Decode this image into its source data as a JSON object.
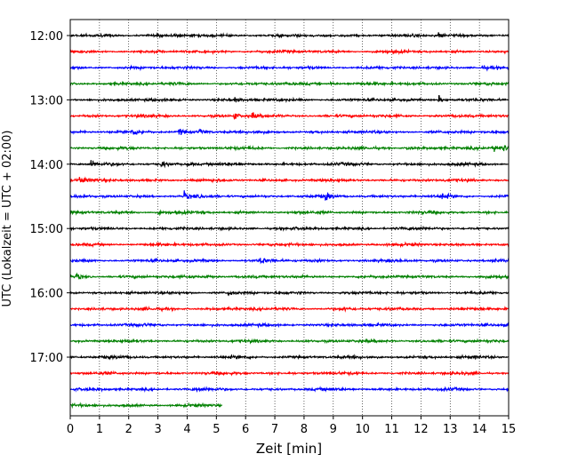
{
  "chart_data": {
    "type": "line",
    "title": "",
    "xlabel": "Zeit  [min]",
    "ylabel": "UTC (Lokalzeit = UTC + 02:00)",
    "xlim": [
      0,
      15
    ],
    "x_ticks": [
      0,
      1,
      2,
      3,
      4,
      5,
      6,
      7,
      8,
      9,
      10,
      11,
      12,
      13,
      14,
      15
    ],
    "x_tick_labels": [
      "0",
      "1",
      "2",
      "3",
      "4",
      "5",
      "6",
      "7",
      "8",
      "9",
      "10",
      "11",
      "12",
      "13",
      "14",
      "15"
    ],
    "y_tick_labels": [
      "12:00",
      "13:00",
      "14:00",
      "15:00",
      "16:00",
      "17:00"
    ],
    "grid_x": "dotted vertical lines at each minute",
    "trace_interval_min": 15,
    "colors": [
      "#000000",
      "#ff0000",
      "#0000ff",
      "#008000"
    ],
    "traces": [
      {
        "start": "12:00",
        "end_min": 15,
        "color": "#000000",
        "events": [
          [
            12.6,
            3
          ]
        ]
      },
      {
        "start": "12:15",
        "end_min": 15,
        "color": "#ff0000",
        "events": []
      },
      {
        "start": "12:30",
        "end_min": 15,
        "color": "#0000ff",
        "events": [
          [
            14.1,
            1.6
          ]
        ]
      },
      {
        "start": "12:45",
        "end_min": 15,
        "color": "#008000",
        "events": [
          [
            8.9,
            1.6
          ]
        ]
      },
      {
        "start": "13:00",
        "end_min": 15,
        "color": "#000000",
        "events": [
          [
            5.6,
            2
          ],
          [
            12.6,
            4
          ]
        ]
      },
      {
        "start": "13:15",
        "end_min": 15,
        "color": "#ff0000",
        "events": [
          [
            5.6,
            3.5
          ],
          [
            6.2,
            3
          ]
        ]
      },
      {
        "start": "13:30",
        "end_min": 15,
        "color": "#0000ff",
        "events": [
          [
            2.1,
            3.5
          ],
          [
            3.7,
            4
          ],
          [
            4.4,
            3
          ]
        ]
      },
      {
        "start": "13:45",
        "end_min": 15,
        "color": "#008000",
        "events": [
          [
            11.5,
            2
          ],
          [
            14.5,
            3.5
          ],
          [
            14.8,
            3
          ]
        ]
      },
      {
        "start": "14:00",
        "end_min": 15,
        "color": "#000000",
        "events": [
          [
            0.7,
            4
          ],
          [
            3.1,
            3.5
          ],
          [
            4.0,
            2.5
          ]
        ]
      },
      {
        "start": "14:15",
        "end_min": 15,
        "color": "#ff0000",
        "events": [
          [
            0.3,
            4.5
          ]
        ]
      },
      {
        "start": "14:30",
        "end_min": 15,
        "color": "#0000ff",
        "events": [
          [
            3.9,
            3.5
          ],
          [
            8.7,
            4
          ],
          [
            12.7,
            3
          ]
        ]
      },
      {
        "start": "14:45",
        "end_min": 15,
        "color": "#008000",
        "events": [
          [
            3.0,
            2.5
          ]
        ]
      },
      {
        "start": "15:00",
        "end_min": 15,
        "color": "#000000",
        "events": []
      },
      {
        "start": "15:15",
        "end_min": 15,
        "color": "#ff0000",
        "events": []
      },
      {
        "start": "15:30",
        "end_min": 15,
        "color": "#0000ff",
        "events": [
          [
            6.5,
            3
          ],
          [
            14.4,
            1.8
          ]
        ]
      },
      {
        "start": "15:45",
        "end_min": 15,
        "color": "#008000",
        "events": [
          [
            0.2,
            4
          ],
          [
            4.6,
            2.5
          ]
        ]
      },
      {
        "start": "16:00",
        "end_min": 15,
        "color": "#000000",
        "events": [
          [
            5.4,
            2
          ]
        ]
      },
      {
        "start": "16:15",
        "end_min": 15,
        "color": "#ff0000",
        "events": [
          [
            9.3,
            1.8
          ]
        ]
      },
      {
        "start": "16:30",
        "end_min": 15,
        "color": "#0000ff",
        "events": []
      },
      {
        "start": "16:45",
        "end_min": 15,
        "color": "#008000",
        "events": []
      },
      {
        "start": "17:00",
        "end_min": 15,
        "color": "#000000",
        "events": []
      },
      {
        "start": "17:15",
        "end_min": 15,
        "color": "#ff0000",
        "events": []
      },
      {
        "start": "17:30",
        "end_min": 15,
        "color": "#0000ff",
        "events": [
          [
            4.3,
            1.6
          ]
        ]
      },
      {
        "start": "17:45",
        "end_min": 5.2,
        "color": "#008000",
        "events": []
      }
    ]
  }
}
